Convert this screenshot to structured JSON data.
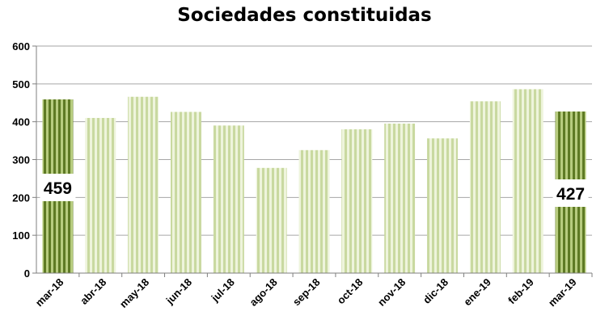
{
  "chart_data": {
    "type": "bar",
    "title": "Sociedades constituidas",
    "xlabel": "",
    "ylabel": "",
    "ylim": [
      0,
      600
    ],
    "yticks": [
      0,
      100,
      200,
      300,
      400,
      500,
      600
    ],
    "grid": true,
    "legend": "none",
    "categories": [
      "mar-18",
      "abr-18",
      "may-18",
      "jun-18",
      "jul-18",
      "ago-18",
      "sep-18",
      "oct-18",
      "nov-18",
      "dic-18",
      "ene-19",
      "feb-19",
      "mar-19"
    ],
    "values": [
      459,
      410,
      466,
      426,
      390,
      278,
      325,
      380,
      395,
      356,
      454,
      486,
      427
    ],
    "highlighted": [
      0,
      12
    ],
    "data_labels": [
      {
        "index": 0,
        "text": "459"
      },
      {
        "index": 12,
        "text": "427"
      }
    ],
    "colors": {
      "highlight_dark": "#5e7a24",
      "highlight_light": "#b7cc7f",
      "normal_dark": "#c9d9a0",
      "normal_light": "#eef4dc",
      "grid": "#a6a6a6",
      "axis": "#7f7f7f"
    }
  }
}
